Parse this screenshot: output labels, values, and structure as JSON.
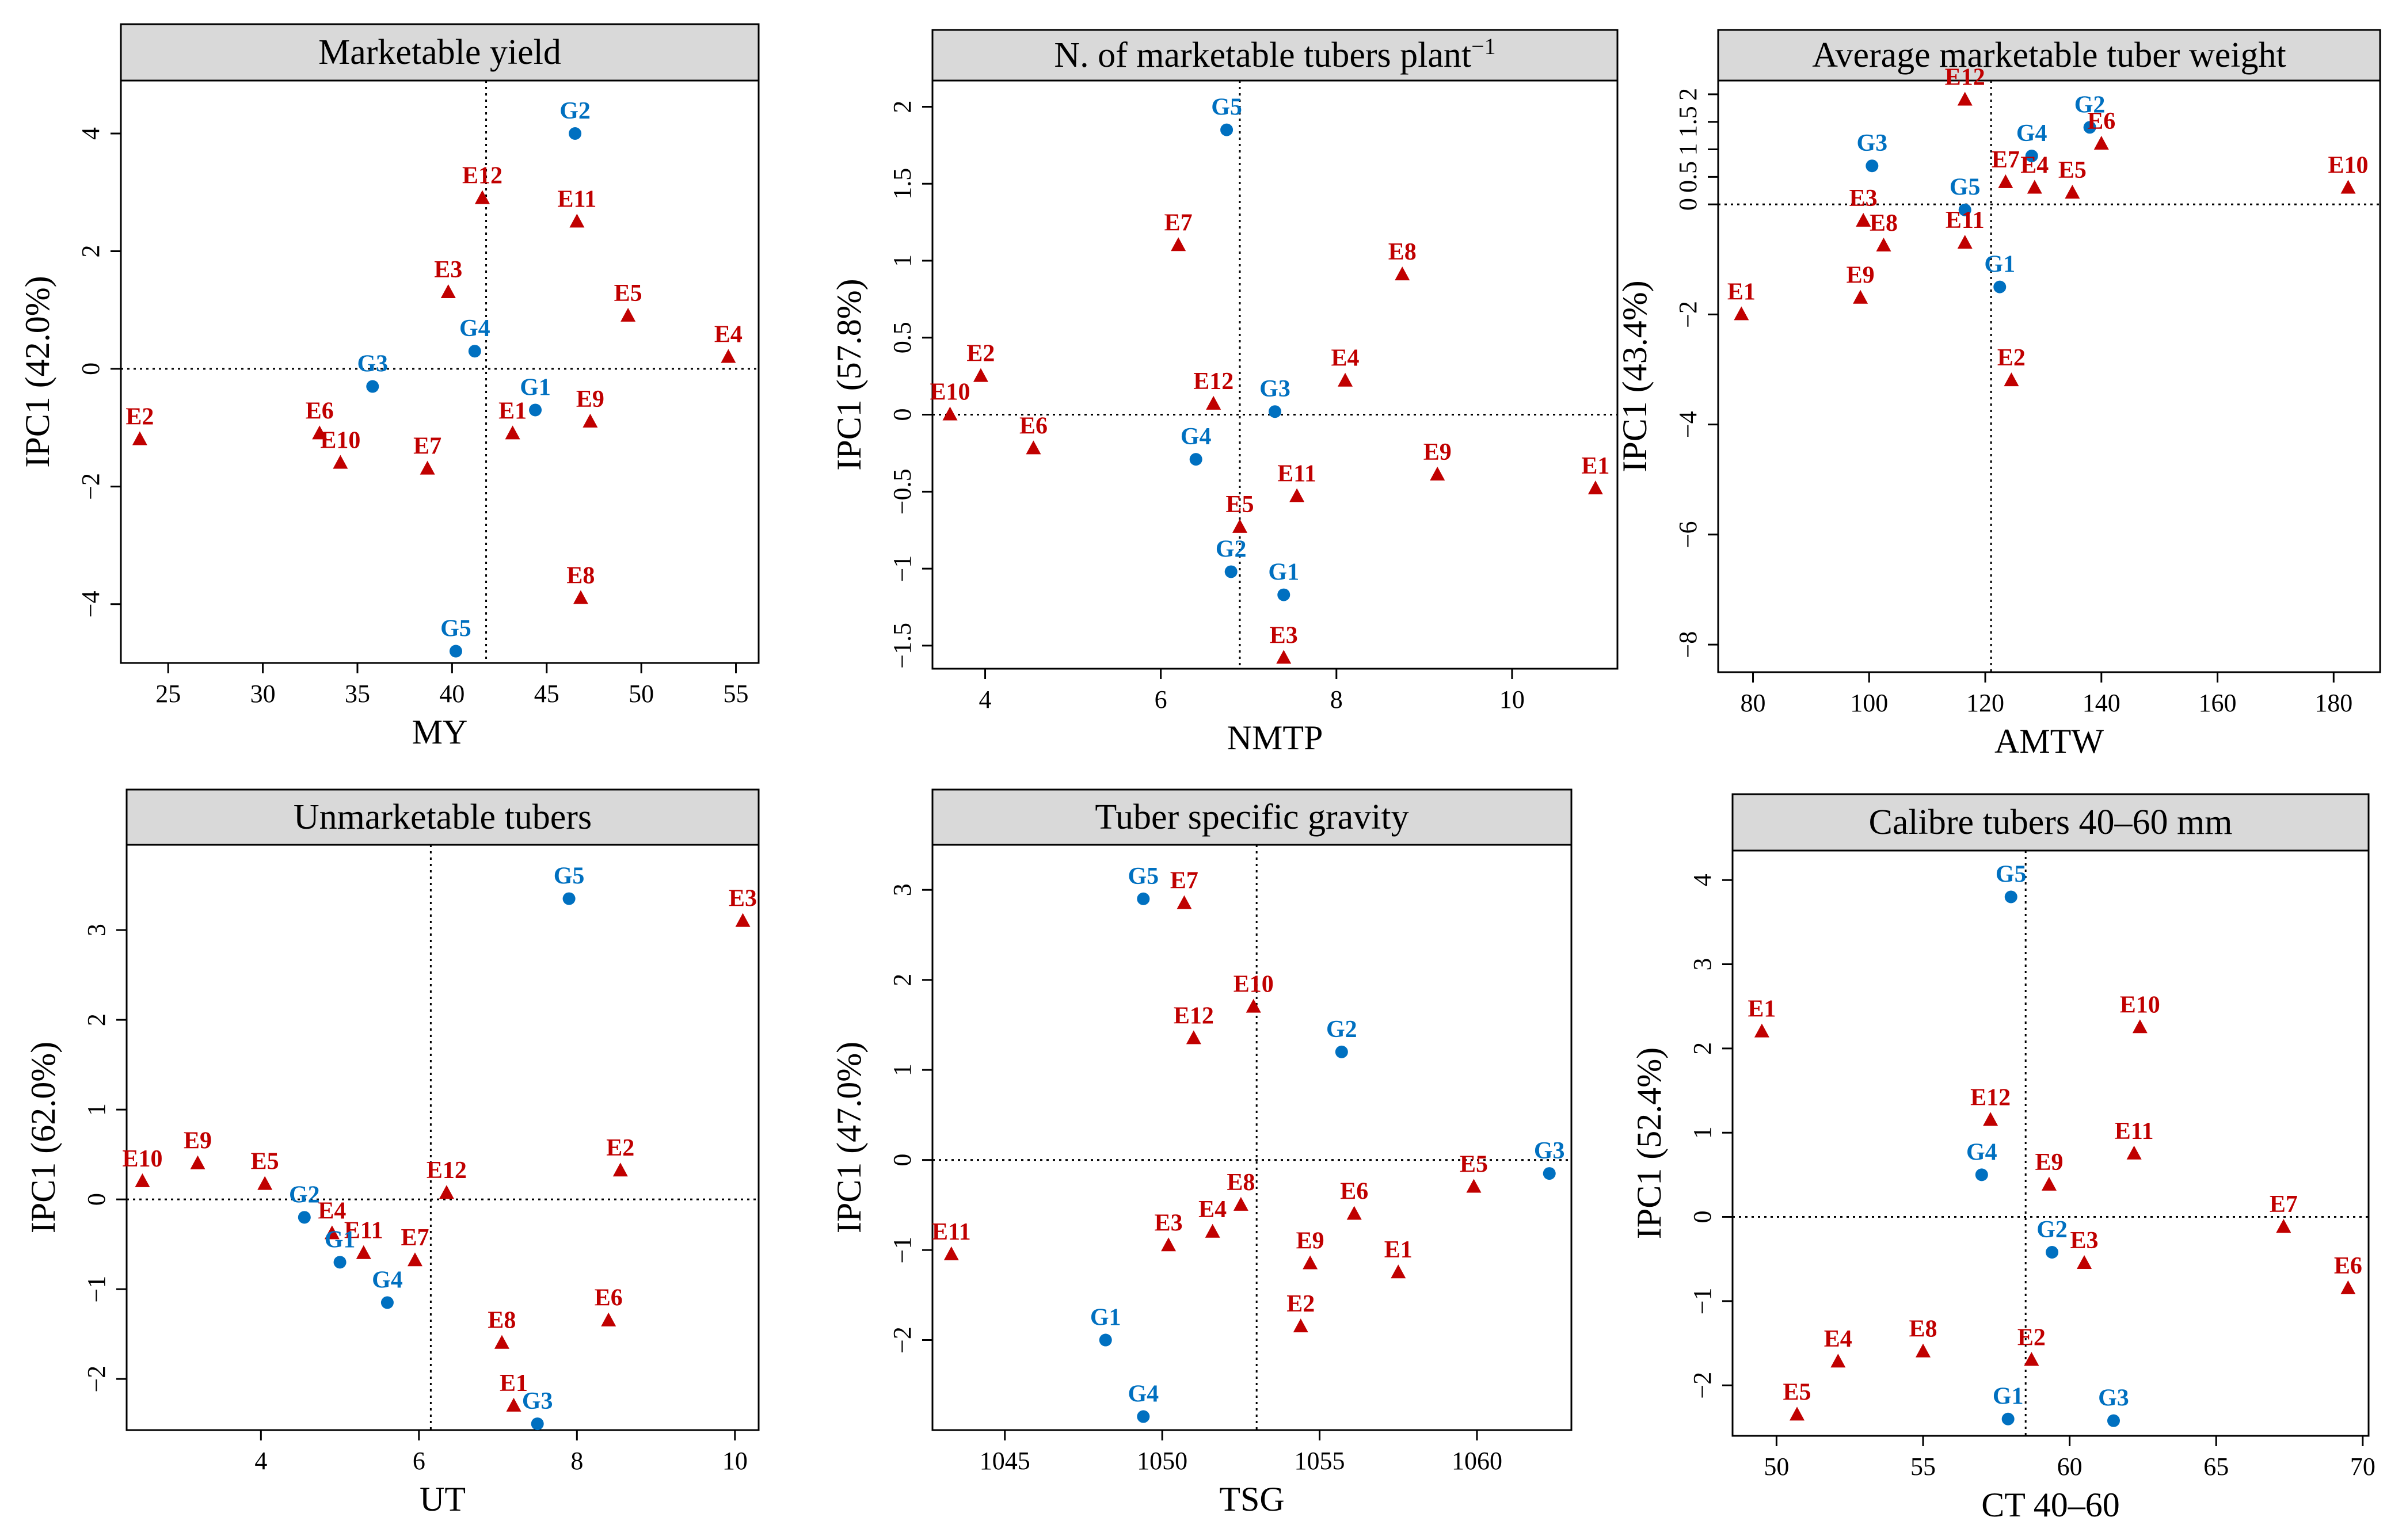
{
  "colors": {
    "environment": "#c00000",
    "genotype": "#0070c0",
    "strip": "#d9d9d9"
  },
  "chart_data": [
    {
      "type": "scatter",
      "title": "Marketable yield",
      "xlabel": "MY",
      "ylabel": "IPC1 (42.0%)",
      "xlim": [
        22.5,
        56.2
      ],
      "ylim": [
        -5.0,
        4.9
      ],
      "xticks": [
        25,
        30,
        35,
        40,
        45,
        50,
        55
      ],
      "yticks": [
        -4,
        -2,
        0,
        2,
        4
      ],
      "ref": {
        "x": 41.8,
        "y": 0
      },
      "grid": false,
      "points": [
        {
          "label": "G2",
          "group": "genotype",
          "x": 46.5,
          "y": 4.0
        },
        {
          "label": "E12",
          "group": "environment",
          "x": 41.6,
          "y": 2.9
        },
        {
          "label": "E11",
          "group": "environment",
          "x": 46.6,
          "y": 2.5
        },
        {
          "label": "E3",
          "group": "environment",
          "x": 39.8,
          "y": 1.3
        },
        {
          "label": "E5",
          "group": "environment",
          "x": 49.3,
          "y": 0.9
        },
        {
          "label": "E4",
          "group": "environment",
          "x": 54.6,
          "y": 0.2
        },
        {
          "label": "G4",
          "group": "genotype",
          "x": 41.2,
          "y": 0.3
        },
        {
          "label": "G3",
          "group": "genotype",
          "x": 35.8,
          "y": -0.3
        },
        {
          "label": "G1",
          "group": "genotype",
          "x": 44.4,
          "y": -0.7
        },
        {
          "label": "E1",
          "group": "environment",
          "x": 43.2,
          "y": -1.1
        },
        {
          "label": "E9",
          "group": "environment",
          "x": 47.3,
          "y": -0.9
        },
        {
          "label": "E2",
          "group": "environment",
          "x": 23.5,
          "y": -1.2
        },
        {
          "label": "E6",
          "group": "environment",
          "x": 33.0,
          "y": -1.1
        },
        {
          "label": "E10",
          "group": "environment",
          "x": 34.1,
          "y": -1.6
        },
        {
          "label": "E7",
          "group": "environment",
          "x": 38.7,
          "y": -1.7
        },
        {
          "label": "E8",
          "group": "environment",
          "x": 46.8,
          "y": -3.9
        },
        {
          "label": "G5",
          "group": "genotype",
          "x": 40.2,
          "y": -4.8
        }
      ]
    },
    {
      "type": "scatter",
      "title": "N. of marketable tubers plant",
      "title_sup": "−1",
      "xlabel": "NMTP",
      "ylabel": "IPC1 (57.8%)",
      "xlim": [
        3.4,
        11.2
      ],
      "ylim": [
        -1.65,
        2.17
      ],
      "xticks": [
        4,
        6,
        8,
        10
      ],
      "yticks": [
        -1.5,
        -1.0,
        -0.5,
        0.0,
        0.5,
        1.0,
        1.5,
        2.0
      ],
      "ref": {
        "x": 6.9,
        "y": 0
      },
      "grid": false,
      "points": [
        {
          "label": "G5",
          "group": "genotype",
          "x": 6.75,
          "y": 1.85
        },
        {
          "label": "E7",
          "group": "environment",
          "x": 6.2,
          "y": 1.1
        },
        {
          "label": "E8",
          "group": "environment",
          "x": 8.75,
          "y": 0.91
        },
        {
          "label": "E2",
          "group": "environment",
          "x": 3.95,
          "y": 0.25
        },
        {
          "label": "E4",
          "group": "environment",
          "x": 8.1,
          "y": 0.22
        },
        {
          "label": "E10",
          "group": "environment",
          "x": 3.6,
          "y": 0.0
        },
        {
          "label": "E12",
          "group": "environment",
          "x": 6.6,
          "y": 0.07
        },
        {
          "label": "G3",
          "group": "genotype",
          "x": 7.3,
          "y": 0.02
        },
        {
          "label": "E6",
          "group": "environment",
          "x": 4.55,
          "y": -0.22
        },
        {
          "label": "G4",
          "group": "genotype",
          "x": 6.4,
          "y": -0.29
        },
        {
          "label": "E11",
          "group": "environment",
          "x": 7.55,
          "y": -0.53
        },
        {
          "label": "E9",
          "group": "environment",
          "x": 9.15,
          "y": -0.39
        },
        {
          "label": "E1",
          "group": "environment",
          "x": 10.95,
          "y": -0.48
        },
        {
          "label": "E5",
          "group": "environment",
          "x": 6.9,
          "y": -0.73
        },
        {
          "label": "G2",
          "group": "genotype",
          "x": 6.8,
          "y": -1.02
        },
        {
          "label": "G1",
          "group": "genotype",
          "x": 7.4,
          "y": -1.17
        },
        {
          "label": "E3",
          "group": "environment",
          "x": 7.4,
          "y": -1.58
        }
      ]
    },
    {
      "type": "scatter",
      "title": "Average marketable tuber weight",
      "xlabel": "AMTW",
      "ylabel": "IPC1 (43.4%)",
      "xlim": [
        74,
        188
      ],
      "ylim": [
        -8.5,
        2.25
      ],
      "xticks": [
        80,
        100,
        120,
        140,
        160,
        180
      ],
      "yticks": [
        -8,
        -6,
        -4,
        -2,
        0,
        0.5,
        1.0,
        1.5,
        2.0
      ],
      "ref": {
        "x": 121,
        "y": 0
      },
      "grid": false,
      "points": [
        {
          "label": "E12",
          "group": "environment",
          "x": 116.5,
          "y": 1.9
        },
        {
          "label": "G2",
          "group": "genotype",
          "x": 138,
          "y": 1.4
        },
        {
          "label": "E6",
          "group": "environment",
          "x": 140,
          "y": 1.1
        },
        {
          "label": "G4",
          "group": "genotype",
          "x": 128,
          "y": 0.88
        },
        {
          "label": "G3",
          "group": "genotype",
          "x": 100.5,
          "y": 0.7
        },
        {
          "label": "E7",
          "group": "environment",
          "x": 123.5,
          "y": 0.4
        },
        {
          "label": "E4",
          "group": "environment",
          "x": 128.5,
          "y": 0.3
        },
        {
          "label": "E5",
          "group": "environment",
          "x": 135,
          "y": 0.21
        },
        {
          "label": "E10",
          "group": "environment",
          "x": 182.5,
          "y": 0.3
        },
        {
          "label": "G5",
          "group": "genotype",
          "x": 116.5,
          "y": -0.1
        },
        {
          "label": "E3",
          "group": "environment",
          "x": 99,
          "y": -0.3
        },
        {
          "label": "E11",
          "group": "environment",
          "x": 116.5,
          "y": -0.7
        },
        {
          "label": "E8",
          "group": "environment",
          "x": 102.5,
          "y": -0.75
        },
        {
          "label": "G1",
          "group": "genotype",
          "x": 122.5,
          "y": -1.5
        },
        {
          "label": "E9",
          "group": "environment",
          "x": 98.5,
          "y": -1.7
        },
        {
          "label": "E1",
          "group": "environment",
          "x": 78,
          "y": -2.0
        },
        {
          "label": "E2",
          "group": "environment",
          "x": 124.5,
          "y": -3.2
        }
      ]
    },
    {
      "type": "scatter",
      "title": "Unmarketable tubers",
      "xlabel": "UT",
      "ylabel": "IPC1 (62.0%)",
      "xlim": [
        2.3,
        10.3
      ],
      "ylim": [
        -2.57,
        3.95
      ],
      "xticks": [
        4,
        6,
        8,
        10
      ],
      "yticks": [
        -2,
        -1,
        0,
        1,
        2,
        3
      ],
      "ref": {
        "x": 6.15,
        "y": 0
      },
      "grid": false,
      "points": [
        {
          "label": "G5",
          "group": "genotype",
          "x": 7.9,
          "y": 3.35
        },
        {
          "label": "E3",
          "group": "environment",
          "x": 10.1,
          "y": 3.1
        },
        {
          "label": "E9",
          "group": "environment",
          "x": 3.2,
          "y": 0.4
        },
        {
          "label": "E10",
          "group": "environment",
          "x": 2.5,
          "y": 0.2
        },
        {
          "label": "E5",
          "group": "environment",
          "x": 4.05,
          "y": 0.17
        },
        {
          "label": "E2",
          "group": "environment",
          "x": 8.55,
          "y": 0.32
        },
        {
          "label": "E12",
          "group": "environment",
          "x": 6.35,
          "y": 0.07
        },
        {
          "label": "G2",
          "group": "genotype",
          "x": 4.55,
          "y": -0.2
        },
        {
          "label": "E4",
          "group": "environment",
          "x": 4.9,
          "y": -0.38
        },
        {
          "label": "E11",
          "group": "environment",
          "x": 5.3,
          "y": -0.6
        },
        {
          "label": "G1",
          "group": "genotype",
          "x": 5.0,
          "y": -0.7
        },
        {
          "label": "E7",
          "group": "environment",
          "x": 5.95,
          "y": -0.68
        },
        {
          "label": "G4",
          "group": "genotype",
          "x": 5.6,
          "y": -1.15
        },
        {
          "label": "E6",
          "group": "environment",
          "x": 8.4,
          "y": -1.35
        },
        {
          "label": "E8",
          "group": "environment",
          "x": 7.05,
          "y": -1.6
        },
        {
          "label": "E1",
          "group": "environment",
          "x": 7.2,
          "y": -2.3
        },
        {
          "label": "G3",
          "group": "genotype",
          "x": 7.5,
          "y": -2.5
        }
      ]
    },
    {
      "type": "scatter",
      "title": "Tuber specific gravity",
      "xlabel": "TSG",
      "ylabel": "IPC1 (47.0%)",
      "xlim": [
        1042.7,
        1063.0
      ],
      "ylim": [
        -3.0,
        3.5
      ],
      "xticks": [
        1045,
        1050,
        1055,
        1060
      ],
      "yticks": [
        -2,
        -1,
        0,
        1,
        2,
        3
      ],
      "ref": {
        "x": 1053.0,
        "y": 0
      },
      "grid": false,
      "points": [
        {
          "label": "G5",
          "group": "genotype",
          "x": 1049.4,
          "y": 2.9
        },
        {
          "label": "E7",
          "group": "environment",
          "x": 1050.7,
          "y": 2.85
        },
        {
          "label": "E10",
          "group": "environment",
          "x": 1052.9,
          "y": 1.7
        },
        {
          "label": "E12",
          "group": "environment",
          "x": 1051.0,
          "y": 1.35
        },
        {
          "label": "G2",
          "group": "genotype",
          "x": 1055.7,
          "y": 1.2
        },
        {
          "label": "G3",
          "group": "genotype",
          "x": 1062.3,
          "y": -0.15
        },
        {
          "label": "E5",
          "group": "environment",
          "x": 1059.9,
          "y": -0.3
        },
        {
          "label": "E8",
          "group": "environment",
          "x": 1052.5,
          "y": -0.5
        },
        {
          "label": "E6",
          "group": "environment",
          "x": 1056.1,
          "y": -0.6
        },
        {
          "label": "E4",
          "group": "environment",
          "x": 1051.6,
          "y": -0.8
        },
        {
          "label": "E3",
          "group": "environment",
          "x": 1050.2,
          "y": -0.95
        },
        {
          "label": "E11",
          "group": "environment",
          "x": 1043.3,
          "y": -1.05
        },
        {
          "label": "E9",
          "group": "environment",
          "x": 1054.7,
          "y": -1.15
        },
        {
          "label": "E1",
          "group": "environment",
          "x": 1057.5,
          "y": -1.25
        },
        {
          "label": "E2",
          "group": "environment",
          "x": 1054.4,
          "y": -1.85
        },
        {
          "label": "G1",
          "group": "genotype",
          "x": 1048.2,
          "y": -2.0
        },
        {
          "label": "G4",
          "group": "genotype",
          "x": 1049.4,
          "y": -2.85
        }
      ]
    },
    {
      "type": "scatter",
      "title": "Calibre tubers 40–60 mm",
      "xlabel": "CT 40–60",
      "ylabel": "IPC1 (52.4%)",
      "xlim": [
        48.5,
        70.2
      ],
      "ylim": [
        -2.6,
        4.35
      ],
      "xticks": [
        50,
        55,
        60,
        65,
        70
      ],
      "yticks": [
        -2,
        -1,
        0,
        1,
        2,
        3,
        4
      ],
      "ref": {
        "x": 58.5,
        "y": 0
      },
      "grid": false,
      "points": [
        {
          "label": "G5",
          "group": "genotype",
          "x": 58.0,
          "y": 3.8
        },
        {
          "label": "E1",
          "group": "environment",
          "x": 49.5,
          "y": 2.2
        },
        {
          "label": "E10",
          "group": "environment",
          "x": 62.4,
          "y": 2.25
        },
        {
          "label": "E12",
          "group": "environment",
          "x": 57.3,
          "y": 1.15
        },
        {
          "label": "E11",
          "group": "environment",
          "x": 62.2,
          "y": 0.75
        },
        {
          "label": "G4",
          "group": "genotype",
          "x": 57.0,
          "y": 0.5
        },
        {
          "label": "E9",
          "group": "environment",
          "x": 59.3,
          "y": 0.38
        },
        {
          "label": "E7",
          "group": "environment",
          "x": 67.3,
          "y": -0.12
        },
        {
          "label": "G2",
          "group": "genotype",
          "x": 59.4,
          "y": -0.42
        },
        {
          "label": "E3",
          "group": "environment",
          "x": 60.5,
          "y": -0.55
        },
        {
          "label": "E6",
          "group": "environment",
          "x": 69.5,
          "y": -0.85
        },
        {
          "label": "E8",
          "group": "environment",
          "x": 55.0,
          "y": -1.6
        },
        {
          "label": "E4",
          "group": "environment",
          "x": 52.1,
          "y": -1.72
        },
        {
          "label": "E2",
          "group": "environment",
          "x": 58.7,
          "y": -1.7
        },
        {
          "label": "E5",
          "group": "environment",
          "x": 50.7,
          "y": -2.35
        },
        {
          "label": "G1",
          "group": "genotype",
          "x": 57.9,
          "y": -2.4
        },
        {
          "label": "G3",
          "group": "genotype",
          "x": 61.5,
          "y": -2.42
        }
      ]
    }
  ]
}
